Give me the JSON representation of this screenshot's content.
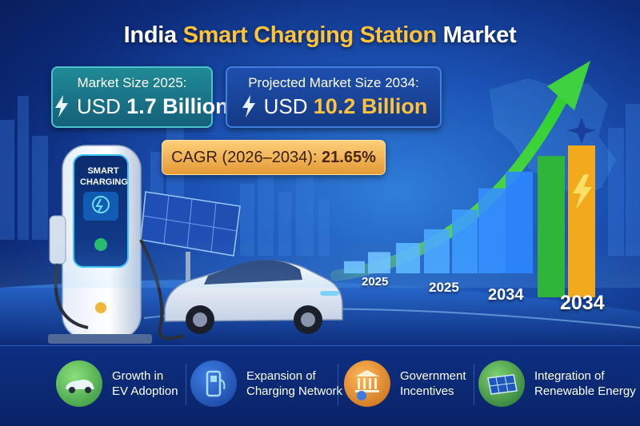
{
  "title": {
    "part1": "India ",
    "highlight": "Smart Charging Station",
    "part3": " Market"
  },
  "cards": {
    "market_2025": {
      "label": "Market Size 2025:",
      "prefix": "USD ",
      "value": "1.7 Billion",
      "icon": "lightning-icon"
    },
    "market_2034": {
      "label": "Projected Market Size 2034:",
      "prefix": "USD ",
      "value": "10.2 Billion",
      "icon": "lightning-icon"
    }
  },
  "cagr": {
    "label": "CAGR (2026–2034): ",
    "value": "21.65%"
  },
  "charger": {
    "screen_text_line1": "SMART",
    "screen_text_line2": "CHARGING"
  },
  "chart_data": {
    "type": "bar",
    "x_labels": [
      "2025",
      "2025",
      "2034",
      "2034"
    ],
    "bars_relative_height": [
      0.08,
      0.14,
      0.2,
      0.29,
      0.42,
      0.56,
      0.67,
      0.93,
      1.0
    ],
    "bar_colors": [
      "#6fc3ff",
      "#6fc3ff",
      "#5cb8ff",
      "#4aa9ff",
      "#3d9cff",
      "#3590ff",
      "#2d86ff",
      "#2fb53a",
      "#f2a91c"
    ],
    "trend": "rising arrow",
    "arrow_color": "#3fd13f"
  },
  "features": [
    {
      "icon": "ev-car-icon",
      "line1": "Growth in",
      "line2": "EV Adoption",
      "color": "#3aa04a"
    },
    {
      "icon": "charging-station-icon",
      "line1": "Expansion of",
      "line2": "Charging Network",
      "color": "#1d4fb8"
    },
    {
      "icon": "government-building-icon",
      "line1": "Government",
      "line2": "Incentives",
      "color": "#e08a22"
    },
    {
      "icon": "solar-panel-icon",
      "line1": "Integration of",
      "line2": "Renewable Energy",
      "color": "#2f9a48"
    }
  ],
  "colors": {
    "accent": "#ffc23a",
    "background": "#1a4fb0",
    "cagr_bg": "#f0b052"
  }
}
